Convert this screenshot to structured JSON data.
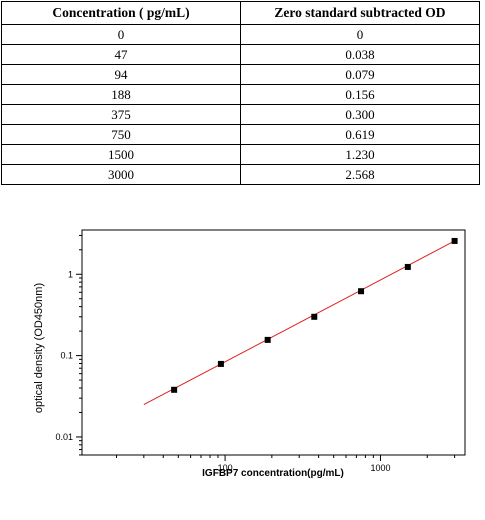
{
  "table": {
    "headers": [
      "Concentration ( pg/mL)",
      "Zero standard subtracted OD"
    ],
    "rows": [
      [
        "0",
        "0"
      ],
      [
        "47",
        "0.038"
      ],
      [
        "94",
        "0.079"
      ],
      [
        "188",
        "0.156"
      ],
      [
        "375",
        "0.300"
      ],
      [
        "750",
        "0.619"
      ],
      [
        "1500",
        "1.230"
      ],
      [
        "3000",
        "2.568"
      ]
    ]
  },
  "chart_data": {
    "type": "scatter",
    "xlabel": "IGFBP7  concentration(pg/mL)",
    "ylabel": "optical density (OD450nm)",
    "xscale": "log",
    "yscale": "log",
    "xlim": [
      12,
      3500
    ],
    "ylim": [
      0.006,
      3.5
    ],
    "xticks": [
      {
        "value": 100,
        "label": "100"
      },
      {
        "value": 1000,
        "label": "1000"
      }
    ],
    "yticks": [
      {
        "value": 0.01,
        "label": "0.01"
      },
      {
        "value": 0.1,
        "label": "0.1"
      },
      {
        "value": 1,
        "label": "1"
      }
    ],
    "points": [
      {
        "x": 47,
        "y": 0.038
      },
      {
        "x": 94,
        "y": 0.079
      },
      {
        "x": 188,
        "y": 0.156
      },
      {
        "x": 375,
        "y": 0.3
      },
      {
        "x": 750,
        "y": 0.619
      },
      {
        "x": 1500,
        "y": 1.23
      },
      {
        "x": 3000,
        "y": 2.568
      }
    ],
    "fit_line": {
      "x": [
        30,
        3000
      ],
      "y": [
        0.025,
        2.568
      ]
    },
    "marker_color": "#000000",
    "line_color": "#e02020"
  }
}
